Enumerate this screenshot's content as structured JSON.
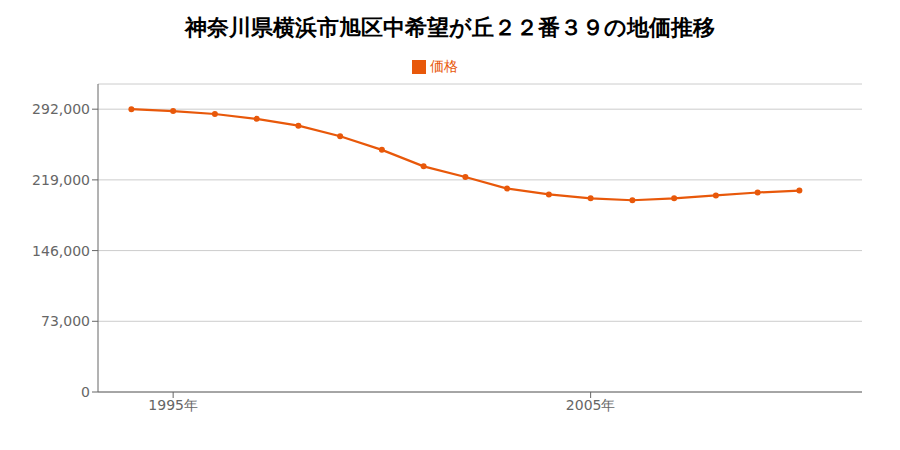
{
  "chart_data": {
    "type": "line",
    "title": "神奈川県横浜市旭区中希望が丘２２番３９の地価推移",
    "x": [
      1994,
      1995,
      1996,
      1997,
      1998,
      1999,
      2000,
      2001,
      2002,
      2003,
      2004,
      2005,
      2006,
      2007,
      2008,
      2009,
      2010
    ],
    "series": [
      {
        "name": "価格",
        "color": "#e8580a",
        "marker": "circle",
        "values": [
          292000,
          290000,
          287000,
          282000,
          275000,
          264000,
          250000,
          233000,
          222000,
          210000,
          204000,
          200000,
          198000,
          200000,
          203000,
          206000,
          208000
        ]
      }
    ],
    "xlim": [
      1993.2,
      2011.5
    ],
    "xticks": [
      {
        "value": 1995,
        "label": "1995年"
      },
      {
        "value": 2005,
        "label": "2005年"
      }
    ],
    "ylim": [
      0,
      318000
    ],
    "yticks": [
      0,
      {
        "value": 73000,
        "label": "73,000"
      },
      {
        "value": 146000,
        "label": "146,000"
      },
      {
        "value": 219000,
        "label": "219,000"
      },
      {
        "value": 292000,
        "label": "292,000"
      }
    ],
    "grid": "y",
    "legend": "top"
  }
}
